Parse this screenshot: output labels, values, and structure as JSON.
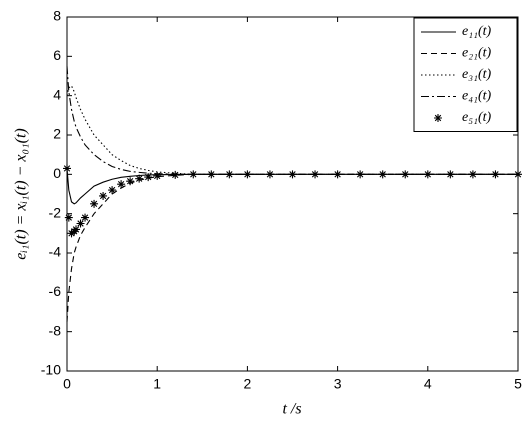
{
  "chart_data": {
    "type": "line",
    "xlabel": "t /s",
    "ylabel": "eᵢ₁(t) = xᵢ₁(t) − x₀₁(t)",
    "xlim": [
      0,
      5
    ],
    "xticks": [
      0,
      1,
      2,
      3,
      4,
      5
    ],
    "ylim": [
      -10,
      8
    ],
    "yticks": [
      -10,
      -8,
      -6,
      -4,
      -2,
      0,
      2,
      4,
      6,
      8
    ],
    "legend": "top-right",
    "x": [
      0,
      0.02,
      0.05,
      0.08,
      0.1,
      0.15,
      0.2,
      0.3,
      0.4,
      0.5,
      0.6,
      0.7,
      0.8,
      0.9,
      1,
      1.2,
      1.4,
      1.6,
      1.8,
      2,
      2.25,
      2.5,
      2.75,
      3,
      3.25,
      3.5,
      3.75,
      4,
      4.25,
      4.5,
      4.75,
      5
    ],
    "series": [
      {
        "name": "e₁₁(t)",
        "color": "#000000",
        "dash": "solid",
        "values": [
          0.3,
          -0.8,
          -1.4,
          -1.5,
          -1.45,
          -1.2,
          -1,
          -0.6,
          -0.4,
          -0.25,
          -0.15,
          -0.1,
          -0.06,
          -0.03,
          -0.02,
          -0.01,
          0,
          0,
          0,
          0,
          0,
          0,
          0,
          0,
          0,
          0,
          0,
          0,
          0,
          0,
          0,
          0
        ]
      },
      {
        "name": "e₂₁(t)",
        "color": "#000000",
        "dash": "dashed",
        "values": [
          -7.5,
          -6,
          -4.8,
          -4,
          -3.7,
          -3.1,
          -2.7,
          -2,
          -1.5,
          -1,
          -0.7,
          -0.45,
          -0.3,
          -0.2,
          -0.12,
          -0.05,
          0,
          0,
          0,
          0,
          0,
          0,
          0,
          0,
          0,
          0,
          0,
          0,
          0,
          0,
          0,
          0
        ]
      },
      {
        "name": "e₃₁(t)",
        "color": "#000000",
        "dash": "dotted",
        "values": [
          4,
          4.4,
          4.5,
          4.2,
          3.9,
          3.3,
          2.8,
          2,
          1.5,
          1,
          0.7,
          0.45,
          0.3,
          0.2,
          0.12,
          0.05,
          0,
          0,
          0,
          0,
          0,
          0,
          0,
          0,
          0,
          0,
          0,
          0,
          0,
          0,
          0,
          0
        ]
      },
      {
        "name": "e₄₁(t)",
        "color": "#000000",
        "dash": "dashdot",
        "values": [
          5.5,
          4.2,
          3.3,
          2.7,
          2.4,
          1.9,
          1.5,
          1,
          0.65,
          0.4,
          0.25,
          0.15,
          0.1,
          0.06,
          0.03,
          0.01,
          0,
          0,
          0,
          0,
          0,
          0,
          0,
          0,
          0,
          0,
          0,
          0,
          0,
          0,
          0,
          0
        ]
      },
      {
        "name": "e₅₁(t)",
        "color": "#000000",
        "dash": "none",
        "marker": "asterisk",
        "values": [
          0.3,
          -2.2,
          -3,
          -2.9,
          -2.8,
          -2.5,
          -2.2,
          -1.5,
          -1.1,
          -0.8,
          -0.5,
          -0.35,
          -0.22,
          -0.14,
          -0.08,
          -0.03,
          0,
          0,
          0,
          0,
          0,
          0,
          0,
          0,
          0,
          0,
          0,
          0,
          0,
          0,
          0,
          0
        ]
      }
    ]
  }
}
